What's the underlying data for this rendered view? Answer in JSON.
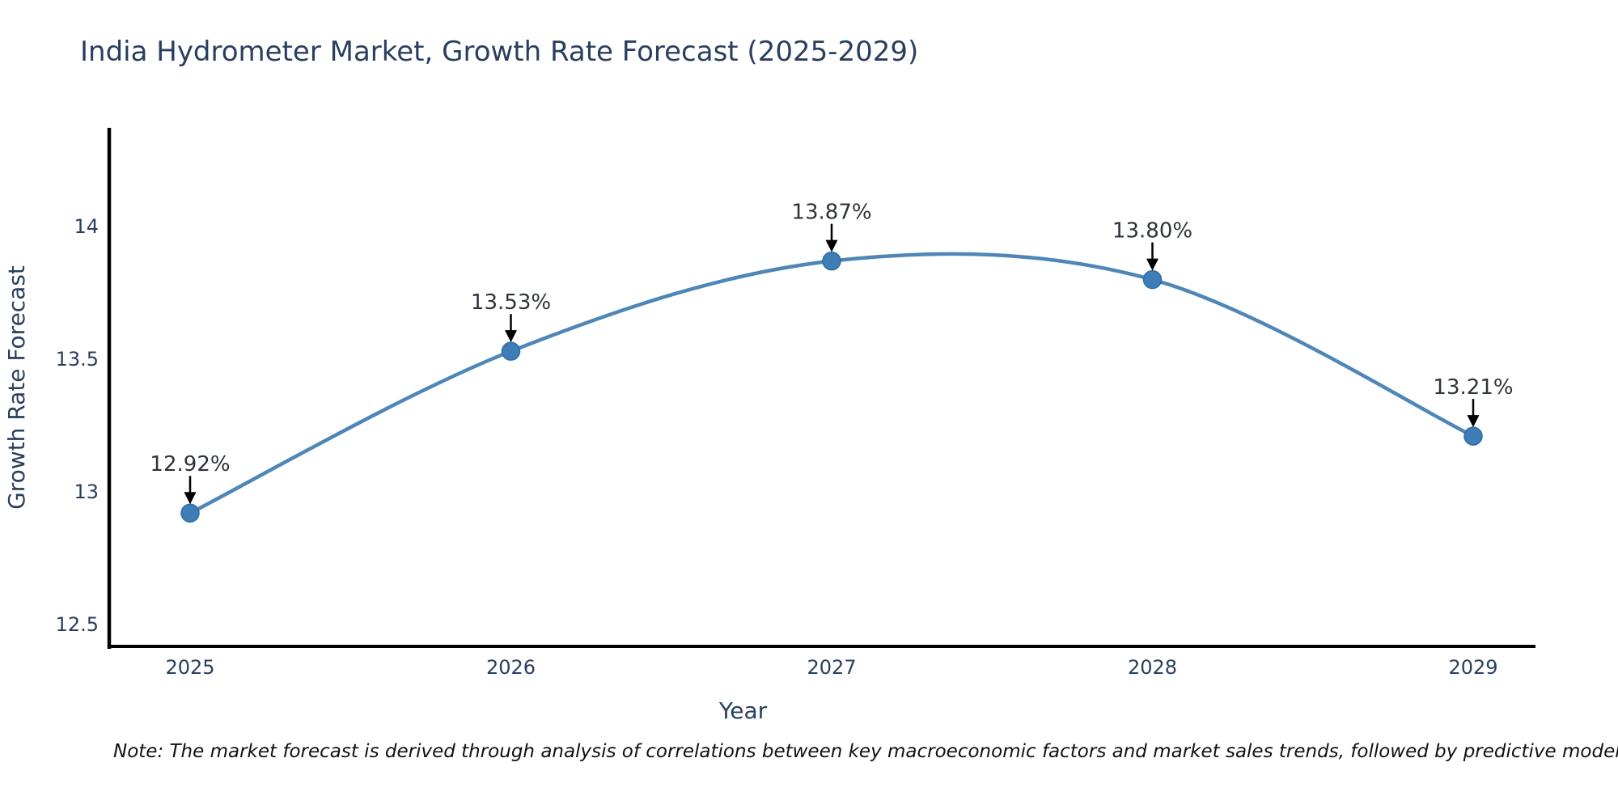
{
  "page": {
    "title": "India Hydrometer Market, Growth Rate Forecast (2025-2029)",
    "note": "Note: The market forecast is derived through analysis of correlations between key macroeconomic factors and market sales trends, followed by predictive modeling to project future sal"
  },
  "chart_data": {
    "type": "line",
    "title": "India Hydrometer Market, Growth Rate Forecast (2025-2029)",
    "xlabel": "Year",
    "ylabel": "Growth Rate Forecast",
    "x": [
      2025,
      2026,
      2027,
      2028,
      2029
    ],
    "xtick_labels": [
      "2025",
      "2026",
      "2027",
      "2028",
      "2029"
    ],
    "series": [
      {
        "name": "Growth Rate Forecast",
        "values": [
          12.92,
          13.53,
          13.87,
          13.8,
          13.21
        ],
        "point_labels": [
          "12.92%",
          "13.53%",
          "13.87%",
          "13.80%",
          "13.21%"
        ]
      }
    ],
    "yticks": [
      12.5,
      13,
      13.5,
      14
    ],
    "ytick_labels": [
      "12.5",
      "13",
      "13.5",
      "14"
    ],
    "ylim": [
      12.41,
      14.37
    ],
    "grid": false,
    "legend_position": "none",
    "line_style": "smooth",
    "annotation_style": "value label above point with black arrow pointing down to marker",
    "colors": {
      "line": "#4e86b8",
      "marker_fill": "#3f7db7",
      "marker_edge": "#2f6da4",
      "axis_line": "#000000",
      "tick_text": "#2a3f5f",
      "title_text": "#2a3f5f",
      "annotation_text": "#2d3339",
      "arrow": "#000000",
      "note_text": "#111111"
    }
  }
}
